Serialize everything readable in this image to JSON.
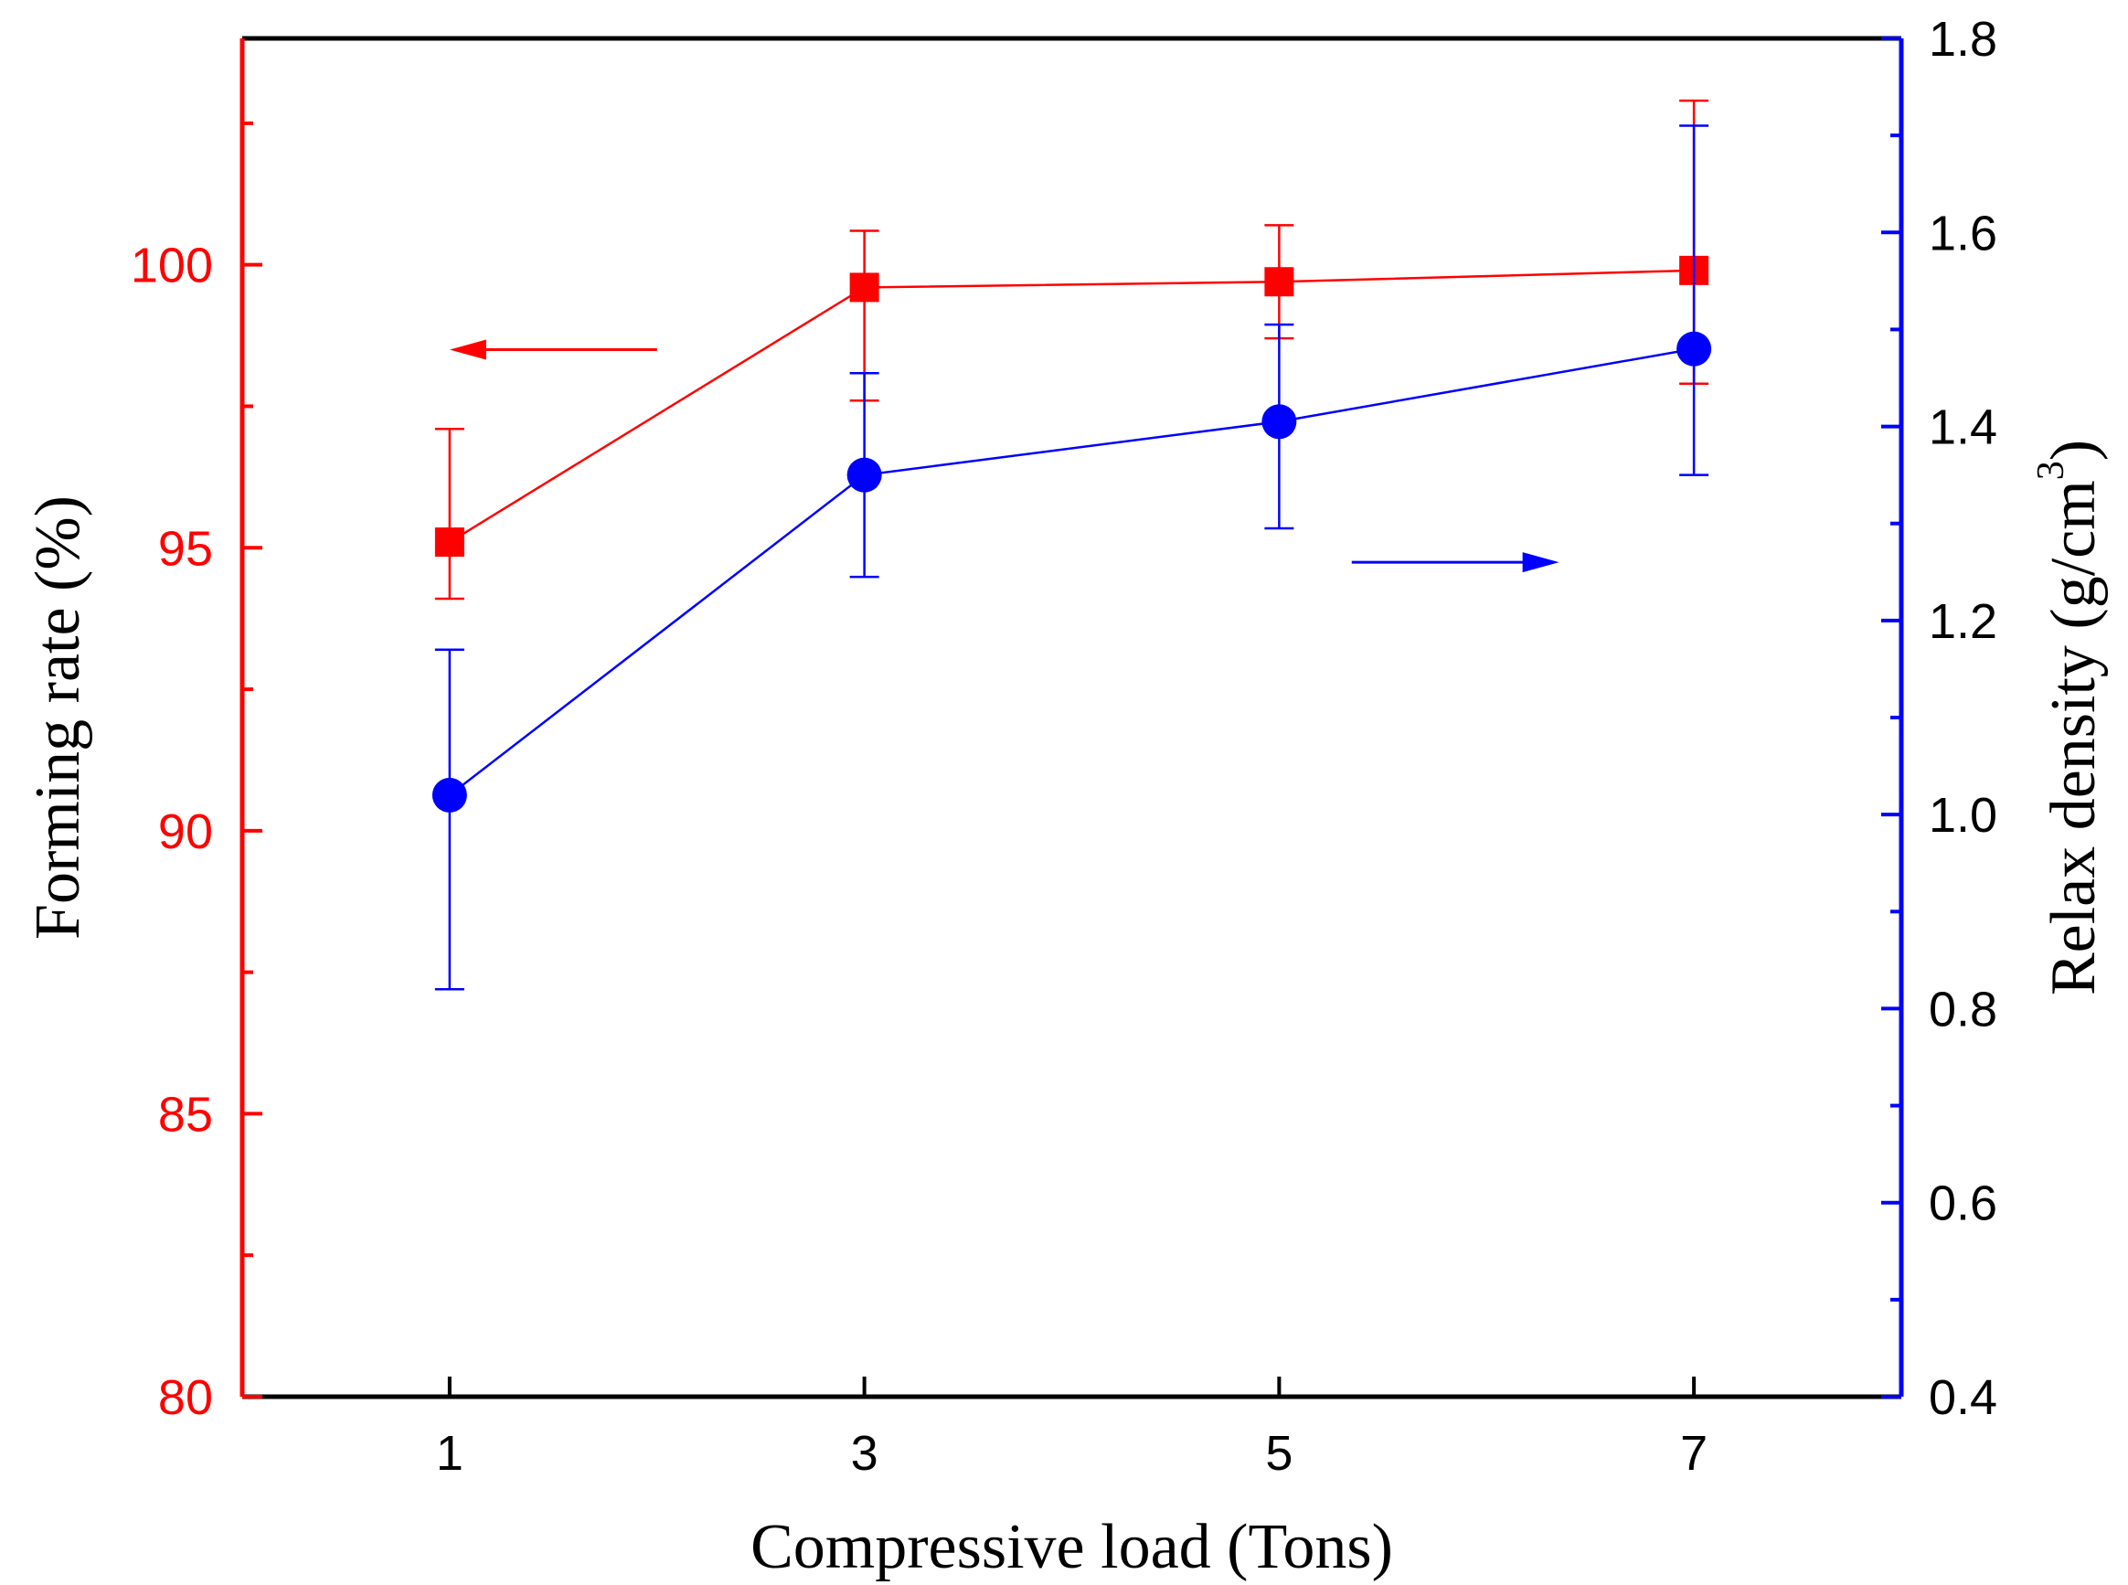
{
  "chart_data": {
    "type": "line",
    "x": [
      1,
      3,
      5,
      7
    ],
    "xlabel": "Compressive load (Tons)",
    "xlim": [
      0,
      8
    ],
    "x_ticks": [
      "1",
      "3",
      "5",
      "7"
    ],
    "y_left": {
      "label": "Forming rate (%)",
      "lim": [
        80,
        104
      ],
      "ticks": [
        "80",
        "85",
        "90",
        "95",
        "100"
      ],
      "color": "#ff0000"
    },
    "y_right": {
      "label_main": "Relax density (g/cm",
      "label_sup": "3",
      "label_close": ")",
      "lim": [
        0.4,
        1.8
      ],
      "ticks": [
        "0.4",
        "0.6",
        "0.8",
        "1.0",
        "1.2",
        "1.4",
        "1.6",
        "1.8"
      ],
      "color": "#0000ff"
    },
    "series": [
      {
        "name": "Forming rate",
        "axis": "left",
        "marker": "square",
        "color": "#ff0000",
        "values": [
          95.1,
          99.6,
          99.7,
          99.9
        ],
        "err_low": [
          94.1,
          97.6,
          98.7,
          97.9
        ],
        "err_high": [
          97.1,
          100.6,
          100.7,
          102.9
        ],
        "indicator_arrow": "left"
      },
      {
        "name": "Relax density",
        "axis": "right",
        "marker": "circle",
        "color": "#0000ff",
        "values": [
          1.02,
          1.35,
          1.405,
          1.48
        ],
        "err_low": [
          0.82,
          1.245,
          1.295,
          1.35
        ],
        "err_high": [
          1.17,
          1.455,
          1.505,
          1.71
        ],
        "indicator_arrow": "right"
      }
    ]
  }
}
